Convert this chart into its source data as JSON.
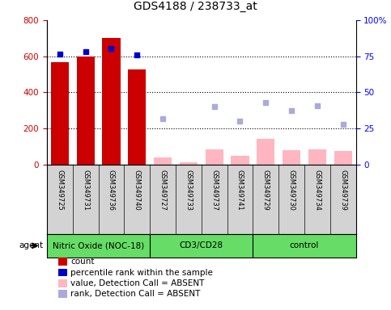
{
  "title": "GDS4188 / 238733_at",
  "samples": [
    "GSM349725",
    "GSM349731",
    "GSM349736",
    "GSM349740",
    "GSM349727",
    "GSM349733",
    "GSM349737",
    "GSM349741",
    "GSM349729",
    "GSM349730",
    "GSM349734",
    "GSM349739"
  ],
  "groups": [
    {
      "name": "Nitric Oxide (NOC-18)",
      "indices": [
        0,
        1,
        2,
        3
      ],
      "color": "#66DD66"
    },
    {
      "name": "CD3/CD28",
      "indices": [
        4,
        5,
        6,
        7
      ],
      "color": "#66DD66"
    },
    {
      "name": "control",
      "indices": [
        8,
        9,
        10,
        11
      ],
      "color": "#66DD66"
    }
  ],
  "count_values": [
    565,
    598,
    700,
    525,
    null,
    null,
    null,
    null,
    null,
    null,
    null,
    null
  ],
  "count_absent_values": [
    null,
    null,
    null,
    null,
    40,
    10,
    85,
    45,
    140,
    80,
    85,
    75
  ],
  "percentile_values": [
    610,
    625,
    645,
    605,
    null,
    null,
    null,
    null,
    null,
    null,
    null,
    null
  ],
  "rank_absent_values": [
    null,
    null,
    null,
    null,
    255,
    null,
    320,
    240,
    345,
    300,
    325,
    220
  ],
  "left_ylim": [
    0,
    800
  ],
  "right_ylim": [
    0,
    100
  ],
  "left_yticks": [
    0,
    200,
    400,
    600,
    800
  ],
  "right_yticks": [
    0,
    25,
    50,
    75,
    100
  ],
  "right_yticklabels": [
    "0",
    "25",
    "50",
    "75",
    "100%"
  ],
  "count_color": "#CC0000",
  "count_absent_color": "#FFB6C1",
  "percentile_color": "#0000CC",
  "rank_absent_color": "#AAAADD",
  "sample_bg_color": "#D3D3D3",
  "agent_label": "agent",
  "legend_items": [
    {
      "label": "count",
      "color": "#CC0000"
    },
    {
      "label": "percentile rank within the sample",
      "color": "#0000CC"
    },
    {
      "label": "value, Detection Call = ABSENT",
      "color": "#FFB6C1"
    },
    {
      "label": "rank, Detection Call = ABSENT",
      "color": "#AAAADD"
    }
  ]
}
